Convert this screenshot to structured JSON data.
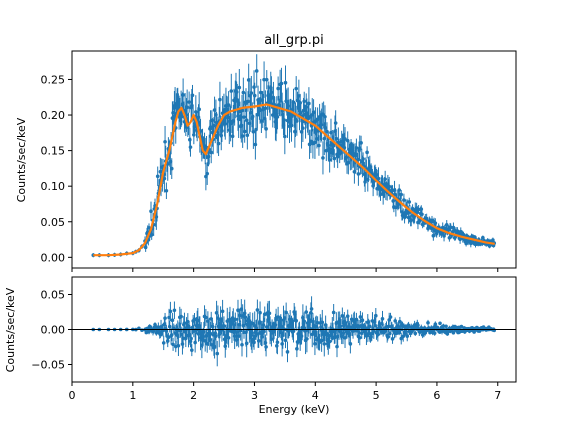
{
  "figure": {
    "title": "all_grp.pi",
    "xlabel": "Energy (keV)"
  },
  "chart_data": [
    {
      "type": "scatter",
      "panel": "top",
      "title": "all_grp.pi",
      "ylabel": "Counts/sec/keV",
      "xlim": [
        0,
        7.3
      ],
      "ylim": [
        -0.015,
        0.29
      ],
      "yticks": [
        0.0,
        0.05,
        0.1,
        0.15,
        0.2,
        0.25
      ],
      "ytick_labels": [
        "0.00",
        "0.05",
        "0.10",
        "0.15",
        "0.20",
        "0.25"
      ],
      "grid": false,
      "colors": {
        "data": "#1f77b4",
        "model": "#ff7f0e"
      },
      "series": [
        {
          "kind": "data_with_errorbars",
          "envelope_x": [
            0.35,
            0.6,
            0.8,
            1.0,
            1.1,
            1.2,
            1.3,
            1.4,
            1.5,
            1.6,
            1.7,
            1.75,
            1.8,
            1.85,
            1.9,
            1.95,
            2.0,
            2.05,
            2.1,
            2.15,
            2.2,
            2.3,
            2.4,
            2.5,
            2.6,
            2.8,
            3.0,
            3.2,
            3.4,
            3.6,
            3.8,
            4.0,
            4.2,
            4.4,
            4.6,
            4.8,
            5.0,
            5.2,
            5.4,
            5.6,
            5.8,
            6.0,
            6.2,
            6.4,
            6.6,
            6.8,
            6.95
          ],
          "envelope_y": [
            0.003,
            0.003,
            0.004,
            0.006,
            0.01,
            0.02,
            0.04,
            0.075,
            0.12,
            0.15,
            0.19,
            0.205,
            0.21,
            0.2,
            0.185,
            0.19,
            0.2,
            0.19,
            0.17,
            0.15,
            0.145,
            0.165,
            0.185,
            0.2,
            0.205,
            0.21,
            0.212,
            0.215,
            0.21,
            0.205,
            0.195,
            0.185,
            0.17,
            0.155,
            0.14,
            0.125,
            0.108,
            0.092,
            0.077,
            0.063,
            0.051,
            0.041,
            0.034,
            0.029,
            0.025,
            0.021,
            0.019
          ],
          "scatter_level": [
            0.0,
            0.0,
            0.0,
            0.001,
            0.004,
            0.008,
            0.013,
            0.018,
            0.02,
            0.022,
            0.024,
            0.024,
            0.024,
            0.024,
            0.024,
            0.024,
            0.024,
            0.024,
            0.022,
            0.022,
            0.022,
            0.022,
            0.023,
            0.023,
            0.024,
            0.025,
            0.025,
            0.025,
            0.024,
            0.024,
            0.023,
            0.022,
            0.021,
            0.02,
            0.018,
            0.017,
            0.015,
            0.013,
            0.012,
            0.01,
            0.009,
            0.008,
            0.007,
            0.006,
            0.005,
            0.004,
            0.003
          ]
        },
        {
          "kind": "model_line",
          "x": [
            0.35,
            0.6,
            0.8,
            1.0,
            1.1,
            1.2,
            1.3,
            1.4,
            1.5,
            1.6,
            1.7,
            1.75,
            1.8,
            1.85,
            1.9,
            1.95,
            2.0,
            2.05,
            2.1,
            2.15,
            2.2,
            2.3,
            2.4,
            2.5,
            2.6,
            2.8,
            3.0,
            3.2,
            3.4,
            3.6,
            3.8,
            4.0,
            4.2,
            4.4,
            4.6,
            4.8,
            5.0,
            5.2,
            5.4,
            5.6,
            5.8,
            6.0,
            6.2,
            6.4,
            6.6,
            6.8,
            6.95
          ],
          "y": [
            0.003,
            0.003,
            0.004,
            0.006,
            0.01,
            0.02,
            0.04,
            0.075,
            0.12,
            0.15,
            0.19,
            0.205,
            0.21,
            0.2,
            0.185,
            0.19,
            0.2,
            0.19,
            0.17,
            0.15,
            0.145,
            0.165,
            0.185,
            0.2,
            0.205,
            0.21,
            0.212,
            0.215,
            0.21,
            0.205,
            0.195,
            0.185,
            0.17,
            0.155,
            0.14,
            0.125,
            0.108,
            0.092,
            0.077,
            0.063,
            0.051,
            0.041,
            0.034,
            0.029,
            0.025,
            0.021,
            0.019
          ]
        }
      ]
    },
    {
      "type": "scatter",
      "panel": "bottom",
      "xlabel": "Energy (keV)",
      "ylabel": "Counts/sec/keV",
      "xlim": [
        0,
        7.3
      ],
      "ylim": [
        -0.075,
        0.075
      ],
      "xticks": [
        0,
        1,
        2,
        3,
        4,
        5,
        6,
        7
      ],
      "xtick_labels": [
        "0",
        "1",
        "2",
        "3",
        "4",
        "5",
        "6",
        "7"
      ],
      "yticks": [
        -0.05,
        0.0,
        0.05
      ],
      "ytick_labels": [
        "−0.05",
        "0.00",
        "0.05"
      ],
      "grid": false,
      "reference_line": 0,
      "colors": {
        "data": "#1f77b4",
        "zero_line": "#000000"
      },
      "series": [
        {
          "kind": "residuals_with_errorbars",
          "x": [
            0.35,
            0.6,
            0.8,
            1.0,
            1.1,
            1.2,
            1.3,
            1.4,
            1.5,
            1.6,
            1.7,
            1.8,
            1.9,
            2.0,
            2.1,
            2.2,
            2.4,
            2.6,
            2.8,
            3.0,
            3.2,
            3.4,
            3.6,
            3.8,
            4.0,
            4.2,
            4.4,
            4.6,
            4.8,
            5.0,
            5.2,
            5.4,
            5.6,
            5.8,
            6.0,
            6.2,
            6.4,
            6.6,
            6.8,
            6.95
          ],
          "spread": [
            0.0,
            0.0,
            0.0,
            0.001,
            0.002,
            0.004,
            0.01,
            0.015,
            0.02,
            0.025,
            0.028,
            0.03,
            0.03,
            0.032,
            0.034,
            0.034,
            0.035,
            0.036,
            0.037,
            0.038,
            0.038,
            0.038,
            0.037,
            0.036,
            0.034,
            0.032,
            0.03,
            0.028,
            0.025,
            0.022,
            0.019,
            0.016,
            0.013,
            0.011,
            0.009,
            0.008,
            0.006,
            0.005,
            0.004,
            0.003
          ]
        }
      ]
    }
  ]
}
